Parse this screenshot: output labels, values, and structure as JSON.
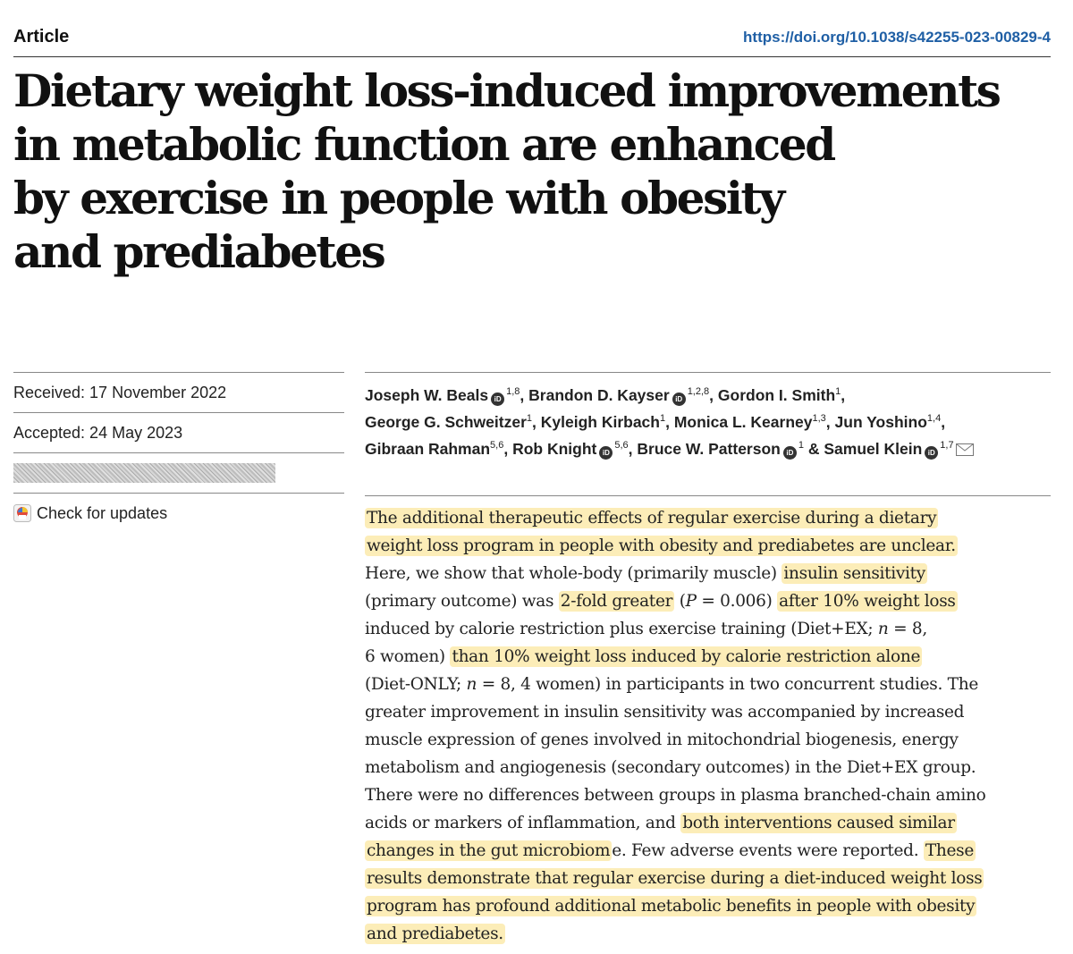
{
  "header": {
    "article_label": "Article",
    "doi": "https://doi.org/10.1038/s42255-023-00829-4"
  },
  "title_lines": [
    "Dietary weight loss-induced improvements",
    "in metabolic function are enhanced",
    "by exercise in people with obesity",
    "and prediabetes"
  ],
  "meta": {
    "received": "Received: 17 November 2022",
    "accepted": "Accepted: 24 May 2023",
    "check_updates": "Check for updates"
  },
  "authors": {
    "a1": "Joseph W. Beals",
    "a1_sup": "1,8",
    "a2": "Brandon D. Kayser",
    "a2_sup": "1,2,8",
    "a3": "Gordon I. Smith",
    "a3_sup": "1",
    "a4": "George G. Schweitzer",
    "a4_sup": "1",
    "a5": "Kyleigh Kirbach",
    "a5_sup": "1",
    "a6": "Monica L. Kearney",
    "a6_sup": "1,3",
    "a7": "Jun Yoshino",
    "a7_sup": "1,4",
    "a8": "Gibraan Rahman",
    "a8_sup": "5,6",
    "a9": "Rob Knight",
    "a9_sup": "5,6",
    "a10": "Bruce W. Patterson",
    "a10_sup": "1",
    "a11": "Samuel Klein",
    "a11_sup": "1,7",
    "orcid_glyph": "iD"
  },
  "abstract": {
    "l1": "The additional therapeutic effects of regular exercise during a dietary",
    "l2": "weight loss program in people with obesity and prediabetes are unclear.",
    "l3a": "Here, we show that whole-body (primarily muscle) ",
    "l3b": "insulin sensitivity",
    "l4a": "(primary outcome) was ",
    "l4b": "2-fold greater",
    "l4c": " (",
    "l4d": "P",
    "l4e": " = 0.006) ",
    "l4f": "after 10% weight loss",
    "l5a": "induced by calorie restriction plus exercise training (Diet+EX; ",
    "l5b": "n",
    "l5c": " = 8,",
    "l6a": "6 women) ",
    "l6b": "than 10% weight loss induced by calorie restriction alone",
    "l7a": "(Diet-ONLY; ",
    "l7b": "n",
    "l7c": " = 8, 4 women) in participants in two concurrent studies. The",
    "l8": "greater improvement in insulin sensitivity was accompanied by increased",
    "l9": "muscle expression of genes involved in mitochondrial biogenesis, energy",
    "l10": "metabolism and angiogenesis (secondary outcomes) in the Diet+EX group.",
    "l11": "There were no differences between groups in plasma branched-chain amino",
    "l12a": "acids or markers of inflammation, and ",
    "l12b": "both interventions caused similar",
    "l13a": "changes in the gut microbiom",
    "l13b": "e. Few adverse events were reported. ",
    "l13c": "These",
    "l14": "results demonstrate that regular exercise during a diet-induced weight loss",
    "l15": "program has profound additional metabolic benefits in people with obesity",
    "l16": "and prediabetes."
  }
}
